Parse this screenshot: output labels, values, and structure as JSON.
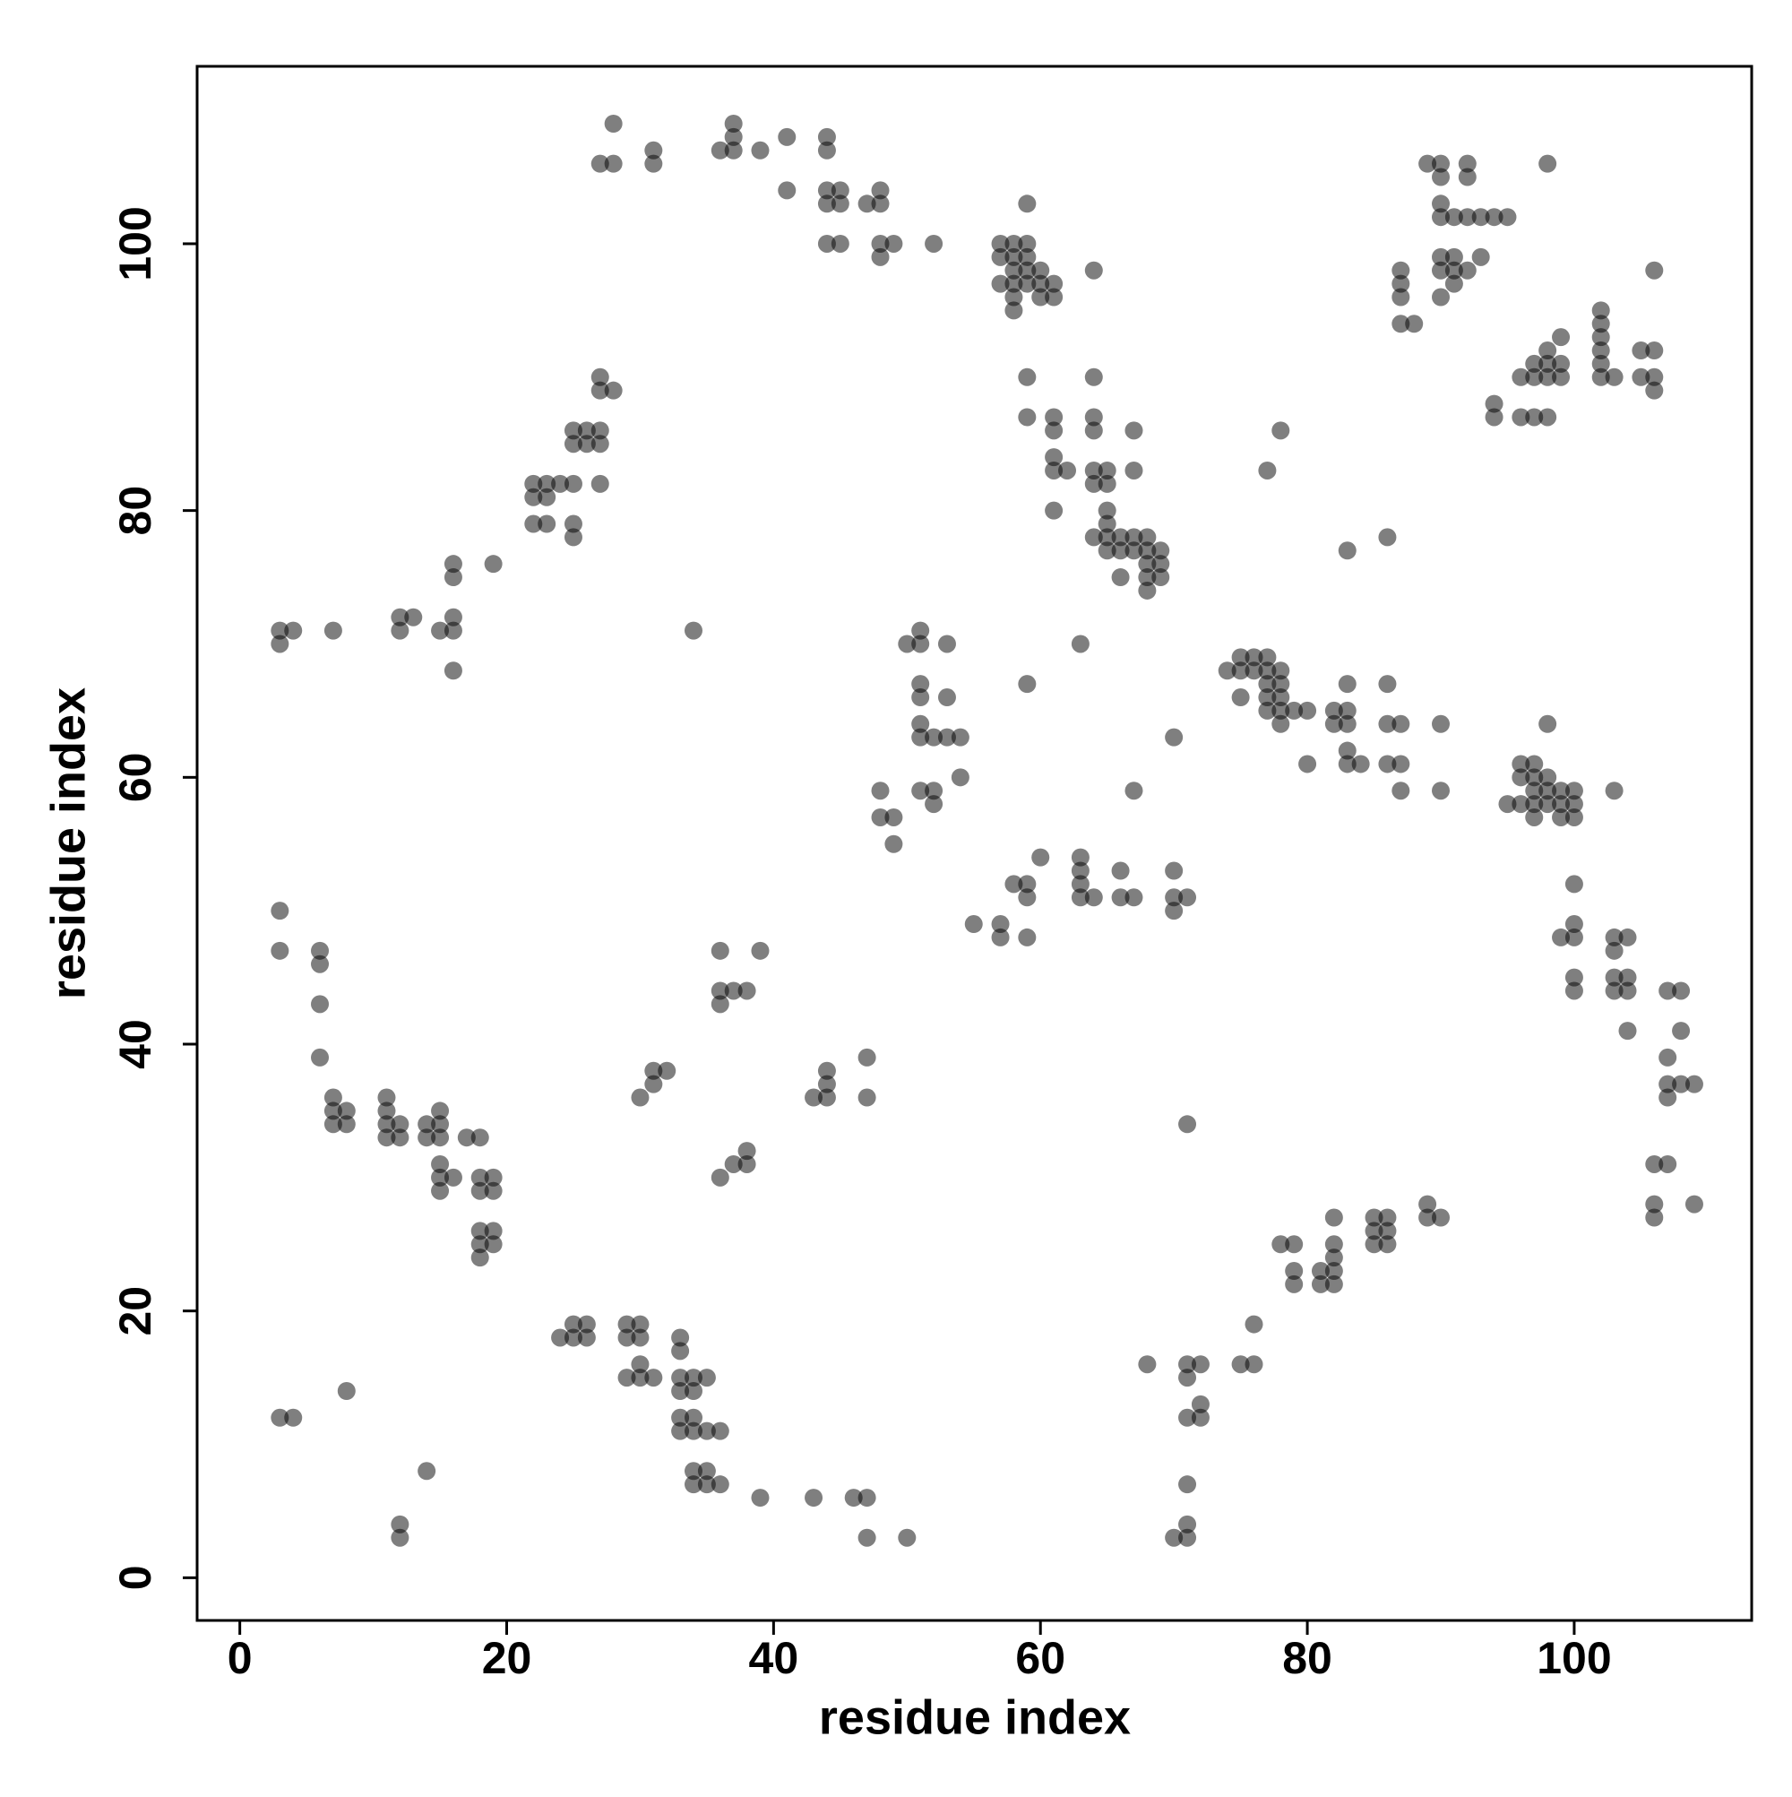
{
  "chart_data": {
    "type": "scatter",
    "xlabel": "residue index",
    "ylabel": "residue index",
    "color": "#000000",
    "alpha": 0.5,
    "xlim": [
      -3.2,
      113.3
    ],
    "ylim": [
      -3.2,
      113.3
    ],
    "xticks": [
      0,
      20,
      40,
      60,
      80,
      100
    ],
    "yticks": [
      0,
      20,
      40,
      60,
      80,
      100
    ],
    "x": [
      28,
      37,
      27,
      28,
      31,
      31,
      36,
      37,
      37,
      39,
      41,
      44,
      44,
      41,
      44,
      45,
      44,
      45,
      47,
      48,
      48,
      44,
      45,
      48,
      49,
      48,
      52,
      57,
      57,
      58,
      58,
      58,
      58,
      59,
      59,
      59,
      59,
      57,
      58,
      58,
      60,
      60,
      60,
      61,
      61,
      59,
      64,
      89,
      90,
      90,
      92,
      92,
      90,
      90,
      91,
      92,
      93,
      94,
      95,
      98,
      87,
      87,
      87,
      87,
      88,
      90,
      90,
      90,
      91,
      91,
      91,
      92,
      93,
      96,
      97,
      97,
      97,
      98,
      98,
      98,
      98,
      96,
      94,
      94,
      99,
      99,
      99,
      102,
      102,
      102,
      102,
      102,
      102,
      103,
      105,
      106,
      105,
      106,
      106,
      106,
      27,
      27,
      28,
      25,
      26,
      27,
      25,
      26,
      27,
      27,
      22,
      23,
      24,
      25,
      22,
      23,
      22,
      23,
      25,
      25,
      16,
      19,
      16,
      3,
      4,
      3,
      7,
      12,
      13,
      12,
      15,
      16,
      16,
      16,
      34,
      59,
      59,
      61,
      61,
      64,
      64,
      64,
      67,
      61,
      61,
      62,
      64,
      65,
      64,
      65,
      67,
      61,
      65,
      65,
      64,
      65,
      66,
      67,
      68,
      65,
      66,
      67,
      68,
      69,
      68,
      69,
      68,
      69,
      66,
      68,
      78,
      77,
      83,
      86,
      50,
      51,
      51,
      53,
      51,
      51,
      53,
      51,
      51,
      52,
      53,
      54,
      54,
      51,
      52,
      52,
      48,
      48,
      49,
      49,
      59,
      63,
      70,
      67,
      74,
      75,
      75,
      76,
      76,
      77,
      77,
      78,
      77,
      78,
      77,
      78,
      75,
      77,
      78,
      79,
      80,
      78,
      83,
      82,
      83,
      82,
      83,
      83,
      83,
      84,
      80,
      86,
      86,
      87,
      86,
      87,
      87,
      90,
      90,
      96,
      97,
      96,
      97,
      98,
      95,
      96,
      97,
      97,
      98,
      98,
      99,
      99,
      100,
      100,
      97,
      99,
      100,
      98,
      103,
      100,
      99,
      100,
      100,
      100,
      100,
      103,
      104,
      103,
      103,
      104,
      103,
      104,
      104,
      107,
      108,
      108,
      107,
      107,
      108,
      109,
      107,
      106,
      107,
      106,
      106,
      109,
      55,
      57,
      57,
      58,
      59,
      59,
      59,
      60,
      63,
      63,
      63,
      63,
      64,
      66,
      66,
      67,
      70,
      70,
      70,
      71,
      3,
      3,
      6,
      6,
      6,
      6,
      7,
      7,
      8,
      7,
      8,
      11,
      11,
      11,
      12,
      11,
      12,
      14,
      15,
      15,
      14,
      15,
      17,
      18,
      15,
      15,
      16,
      15,
      18,
      19,
      18,
      19,
      18,
      19,
      18,
      19,
      18,
      36,
      39,
      36,
      37,
      38,
      36,
      30,
      31,
      31,
      32,
      36,
      37,
      38,
      38,
      43,
      44,
      44,
      44,
      47,
      47,
      71,
      24,
      25,
      26,
      25,
      26,
      29,
      30,
      29,
      30,
      30,
      29,
      30,
      31,
      33,
      33,
      33,
      34,
      35,
      33,
      34,
      33,
      34,
      33,
      34,
      35,
      36,
      34,
      35,
      34,
      35,
      36,
      39,
      43,
      46,
      47,
      47,
      50,
      3,
      4,
      8,
      14,
      12,
      12,
      68,
      71,
      72,
      71,
      72,
      71,
      72,
      71,
      71,
      70,
      71,
      75,
      76,
      76,
      78,
      79,
      79,
      79,
      81,
      82,
      81,
      82,
      82,
      82,
      82,
      85,
      86,
      85,
      86,
      85,
      86,
      89,
      89,
      90
    ],
    "values": [
      109,
      109,
      106,
      106,
      107,
      106,
      107,
      107,
      108,
      107,
      108,
      108,
      107,
      104,
      104,
      104,
      103,
      103,
      103,
      103,
      104,
      100,
      100,
      100,
      100,
      99,
      100,
      100,
      99,
      100,
      99,
      98,
      97,
      100,
      99,
      98,
      97,
      97,
      96,
      95,
      98,
      97,
      96,
      97,
      96,
      103,
      98,
      106,
      106,
      105,
      106,
      105,
      103,
      102,
      102,
      102,
      102,
      102,
      102,
      106,
      98,
      97,
      96,
      94,
      94,
      99,
      98,
      96,
      99,
      98,
      97,
      98,
      99,
      90,
      91,
      90,
      87,
      91,
      90,
      92,
      87,
      87,
      88,
      87,
      93,
      91,
      90,
      95,
      94,
      93,
      92,
      91,
      90,
      90,
      92,
      92,
      90,
      90,
      89,
      98,
      90,
      89,
      89,
      86,
      86,
      86,
      85,
      85,
      85,
      82,
      82,
      82,
      82,
      82,
      81,
      81,
      79,
      79,
      79,
      78,
      76,
      76,
      75,
      71,
      71,
      70,
      71,
      72,
      72,
      71,
      71,
      72,
      71,
      68,
      71,
      90,
      87,
      87,
      86,
      90,
      87,
      86,
      86,
      84,
      83,
      83,
      83,
      83,
      82,
      82,
      83,
      80,
      80,
      79,
      78,
      78,
      78,
      78,
      78,
      77,
      77,
      77,
      77,
      77,
      76,
      76,
      75,
      75,
      75,
      74,
      86,
      83,
      77,
      78,
      70,
      70,
      71,
      70,
      67,
      66,
      66,
      64,
      63,
      63,
      63,
      63,
      60,
      59,
      59,
      58,
      59,
      57,
      57,
      55,
      67,
      70,
      63,
      59,
      68,
      69,
      68,
      69,
      68,
      69,
      68,
      68,
      67,
      67,
      66,
      66,
      66,
      65,
      65,
      65,
      65,
      64,
      67,
      65,
      65,
      64,
      64,
      62,
      61,
      61,
      61,
      67,
      64,
      64,
      61,
      61,
      59,
      64,
      59,
      61,
      61,
      60,
      60,
      60,
      58,
      58,
      59,
      58,
      59,
      58,
      59,
      58,
      59,
      58,
      57,
      57,
      57,
      64,
      59,
      52,
      48,
      48,
      49,
      45,
      44,
      48,
      48,
      47,
      45,
      45,
      44,
      44,
      41,
      44,
      44,
      41,
      39,
      37,
      37,
      37,
      36,
      31,
      31,
      28,
      27,
      28,
      49,
      49,
      48,
      52,
      52,
      51,
      48,
      54,
      54,
      53,
      52,
      51,
      51,
      53,
      51,
      51,
      53,
      51,
      50,
      51,
      50,
      47,
      47,
      46,
      43,
      39,
      36,
      35,
      35,
      34,
      34,
      36,
      35,
      34,
      34,
      33,
      33,
      34,
      35,
      34,
      33,
      33,
      33,
      33,
      31,
      30,
      30,
      29,
      30,
      30,
      29,
      29,
      26,
      26,
      25,
      25,
      24,
      47,
      47,
      44,
      44,
      44,
      43,
      36,
      37,
      38,
      38,
      30,
      31,
      32,
      31,
      36,
      36,
      37,
      38,
      39,
      36,
      34,
      18,
      19,
      19,
      18,
      18,
      19,
      19,
      18,
      18,
      16,
      15,
      15,
      15,
      18,
      17,
      15,
      15,
      15,
      14,
      14,
      12,
      12,
      11,
      11,
      11,
      11,
      8,
      8,
      7,
      7,
      7,
      6,
      6,
      6,
      6,
      3,
      3,
      12,
      12,
      14,
      8,
      4,
      3,
      16,
      16,
      16,
      15,
      13,
      12,
      12,
      7,
      4,
      3,
      3,
      16,
      16,
      19,
      25,
      25,
      23,
      22,
      23,
      23,
      22,
      22,
      24,
      25,
      27,
      27,
      27,
      26,
      26,
      25,
      25,
      28,
      27,
      27
    ]
  }
}
